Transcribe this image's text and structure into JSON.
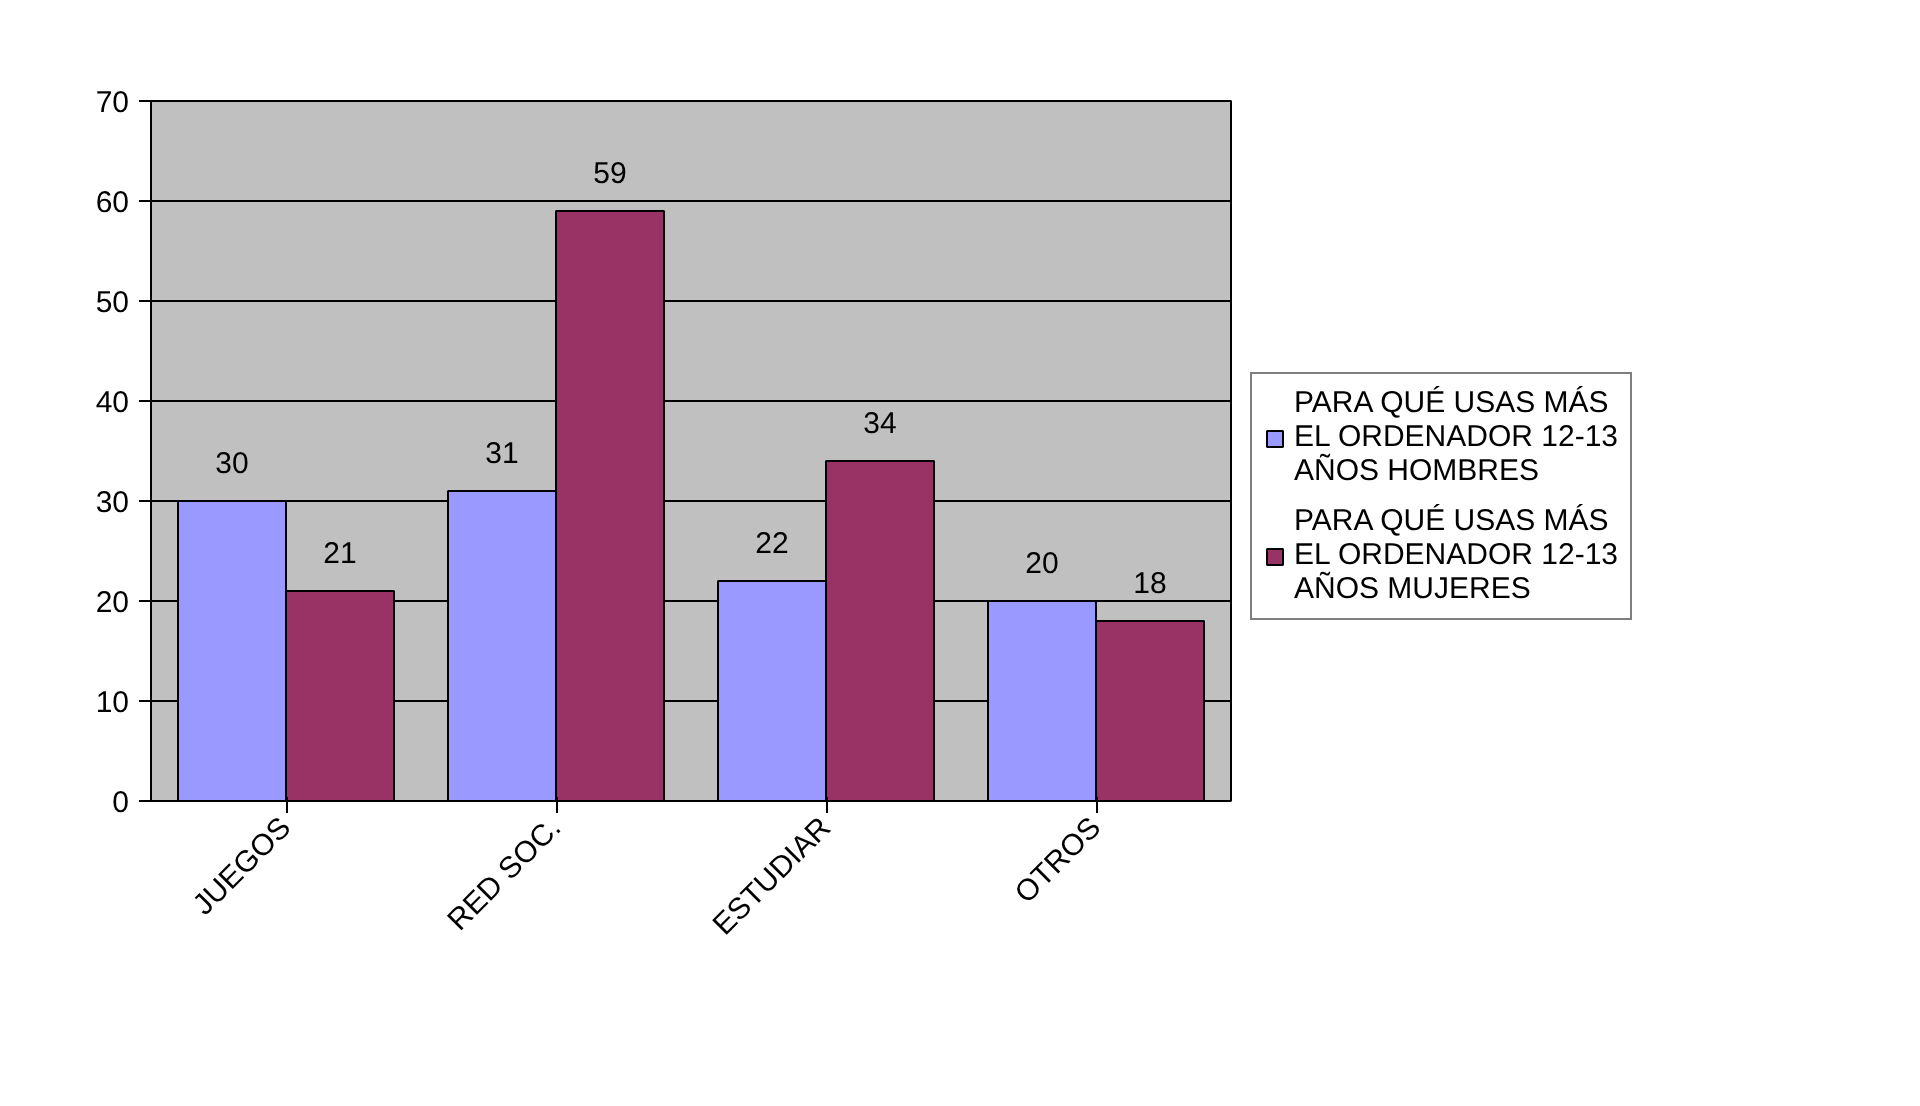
{
  "chart_data": {
    "type": "bar",
    "categories": [
      "JUEGOS",
      "RED SOC.",
      "ESTUDIAR",
      "OTROS"
    ],
    "series": [
      {
        "name": "PARA QUÉ USAS MÁS EL ORDENADOR 12-13 AÑOS HOMBRES",
        "color": "#9999ff",
        "values": [
          30,
          31,
          22,
          20
        ]
      },
      {
        "name": "PARA QUÉ USAS MÁS EL ORDENADOR 12-13 AÑOS MUJERES",
        "color": "#993366",
        "values": [
          21,
          59,
          34,
          18
        ]
      }
    ],
    "ylim": [
      0,
      70
    ],
    "yticks": [
      0,
      10,
      20,
      30,
      40,
      50,
      60,
      70
    ],
    "grid": "y",
    "legend": "right",
    "data_labels": true
  }
}
